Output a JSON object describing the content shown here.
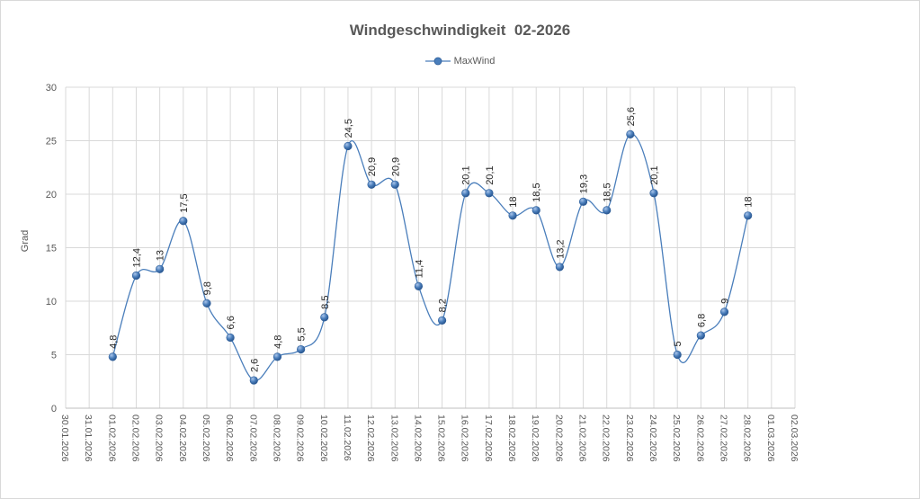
{
  "chart_data": {
    "type": "line",
    "title": "Windgeschwindigkeit  02-2026",
    "xlabel": "",
    "ylabel": "Grad",
    "ylim": [
      0,
      30
    ],
    "yticks": [
      "0",
      "5",
      "10",
      "15",
      "20",
      "25",
      "30"
    ],
    "categories": [
      "30.01.2026",
      "31.01.2026",
      "01.02.2026",
      "02.02.2026",
      "03.02.2026",
      "04.02.2026",
      "05.02.2026",
      "06.02.2026",
      "07.02.2026",
      "08.02.2026",
      "09.02.2026",
      "10.02.2026",
      "11.02.2026",
      "12.02.2026",
      "13.02.2026",
      "14.02.2026",
      "15.02.2026",
      "16.02.2026",
      "17.02.2026",
      "18.02.2026",
      "19.02.2026",
      "20.02.2026",
      "21.02.2026",
      "22.02.2026",
      "23.02.2026",
      "24.02.2026",
      "25.02.2026",
      "26.02.2026",
      "27.02.2026",
      "28.02.2026",
      "01.03.2026",
      "02.03.2026"
    ],
    "series": [
      {
        "name": "MaxWind",
        "color": "#4a7ebb",
        "values": [
          null,
          null,
          4.8,
          12.4,
          13,
          17.5,
          9.8,
          6.6,
          2.6,
          4.8,
          5.5,
          8.5,
          24.5,
          20.9,
          20.9,
          11.4,
          8.2,
          20.1,
          20.1,
          18,
          18.5,
          13.2,
          19.3,
          18.5,
          25.6,
          20.1,
          5,
          6.8,
          9,
          18,
          null,
          null
        ],
        "labels": [
          null,
          null,
          "4,8",
          "12,4",
          "13",
          "17,5",
          "9,8",
          "6,6",
          "2,6",
          "4,8",
          "5,5",
          "8,5",
          "24,5",
          "20,9",
          "20,9",
          "11,4",
          "8,2",
          "20,1",
          "20,1",
          "18",
          "18,5",
          "13,2",
          "19,3",
          "18,5",
          "25,6",
          "20,1",
          "5",
          "6,8",
          "9",
          "18",
          null,
          null
        ]
      }
    ],
    "grid": true,
    "smooth": true,
    "legend": "top"
  }
}
